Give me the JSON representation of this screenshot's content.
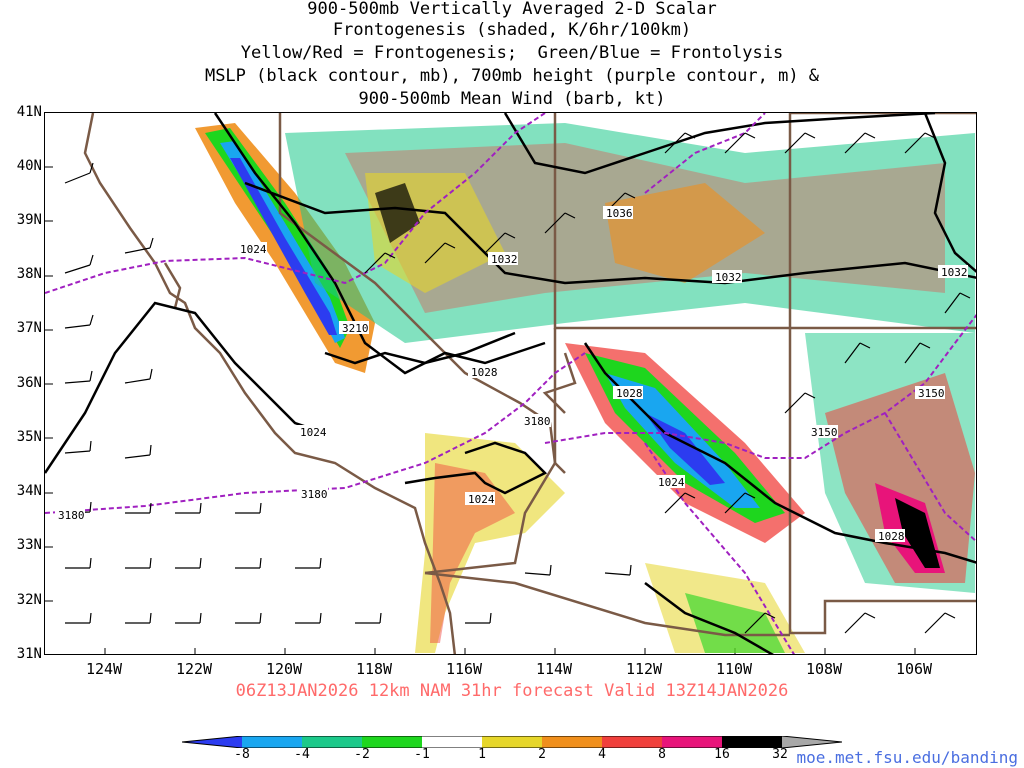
{
  "title": {
    "line1": "900-500mb Vertically Averaged 2-D Scalar",
    "line2": "Frontogenesis (shaded, K/6hr/100km)",
    "line3": "Yellow/Red = Frontogenesis;  Green/Blue = Frontolysis",
    "line4": "MSLP (black contour, mb), 700mb height (purple contour, m) &",
    "line5": "900-500mb Mean Wind (barb, kt)"
  },
  "axes": {
    "lat_labels": [
      "41N",
      "40N",
      "39N",
      "38N",
      "37N",
      "36N",
      "35N",
      "34N",
      "33N",
      "32N",
      "31N"
    ],
    "lon_labels": [
      "124W",
      "122W",
      "120W",
      "118W",
      "116W",
      "114W",
      "112W",
      "110W",
      "108W",
      "106W"
    ]
  },
  "contour_labels": {
    "mslp": [
      "1024",
      "1032",
      "1036",
      "1032",
      "1032",
      "1028",
      "1028",
      "1024",
      "1024",
      "1024",
      "1028"
    ],
    "height": [
      "3210",
      "3180",
      "3180",
      "3180",
      "3150",
      "3150"
    ]
  },
  "footer": "06Z13JAN2026 12km NAM 31hr forecast Valid 13Z14JAN2026",
  "colorbar": {
    "labels": [
      "-8",
      "-4",
      "-2",
      "-1",
      "1",
      "2",
      "4",
      "8",
      "16",
      "32"
    ],
    "colors": {
      "lt_-8": "#2c3cf0",
      "-8_-4": "#19a6f0",
      "-4_-2": "#1cc98a",
      "-2_-1": "#1ed61e",
      "-1_1": "#ffffff",
      "1_2": "#e6d62a",
      "2_4": "#f08f1c",
      "4_8": "#f0403c",
      "8_16": "#e8147a",
      "16_32": "#000000",
      "gt_32": "#a8a8a8"
    }
  },
  "url": "moe.met.fsu.edu/banding"
}
